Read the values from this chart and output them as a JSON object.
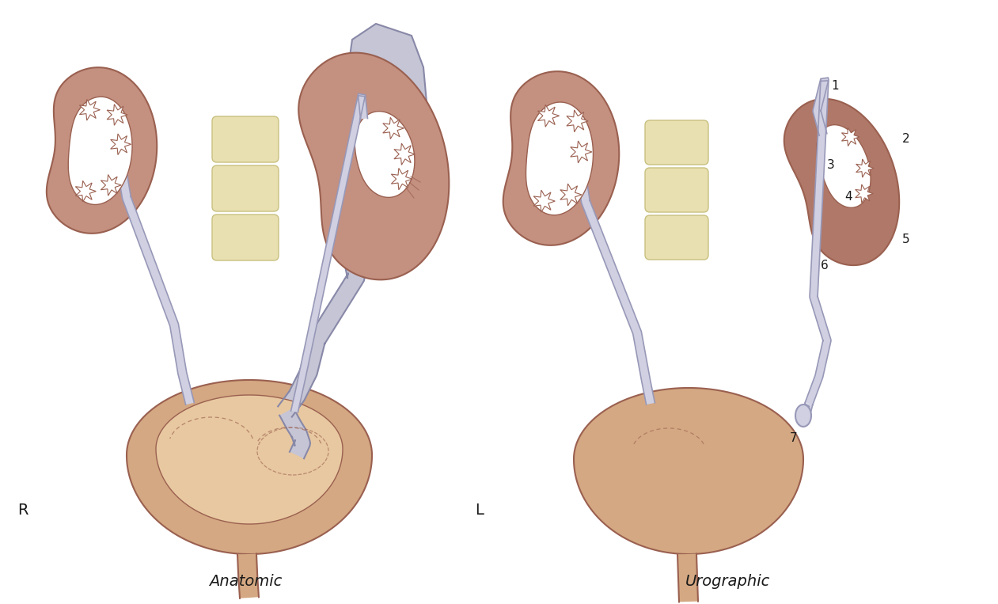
{
  "bg_color": "#ffffff",
  "kidney_brown": "#c49080",
  "kidney_dark": "#b07060",
  "kidney_outline": "#9a6050",
  "pelvis_white": "#ffffff",
  "pelvis_gray": "#c8c8d8",
  "ureter_fill": "#d0d0e2",
  "ureter_edge": "#9898b8",
  "bladder_fill": "#d4a882",
  "bladder_light": "#e8c8a0",
  "bladder_inner": "#e8c8a0",
  "vertebra_fill": "#e8e0b0",
  "vertebra_edge": "#c8c080",
  "text_color": "#1a1a1a",
  "title_anatomic": "Anatomic",
  "title_urographic": "Urographic",
  "label_R": "R",
  "label_L": "L"
}
